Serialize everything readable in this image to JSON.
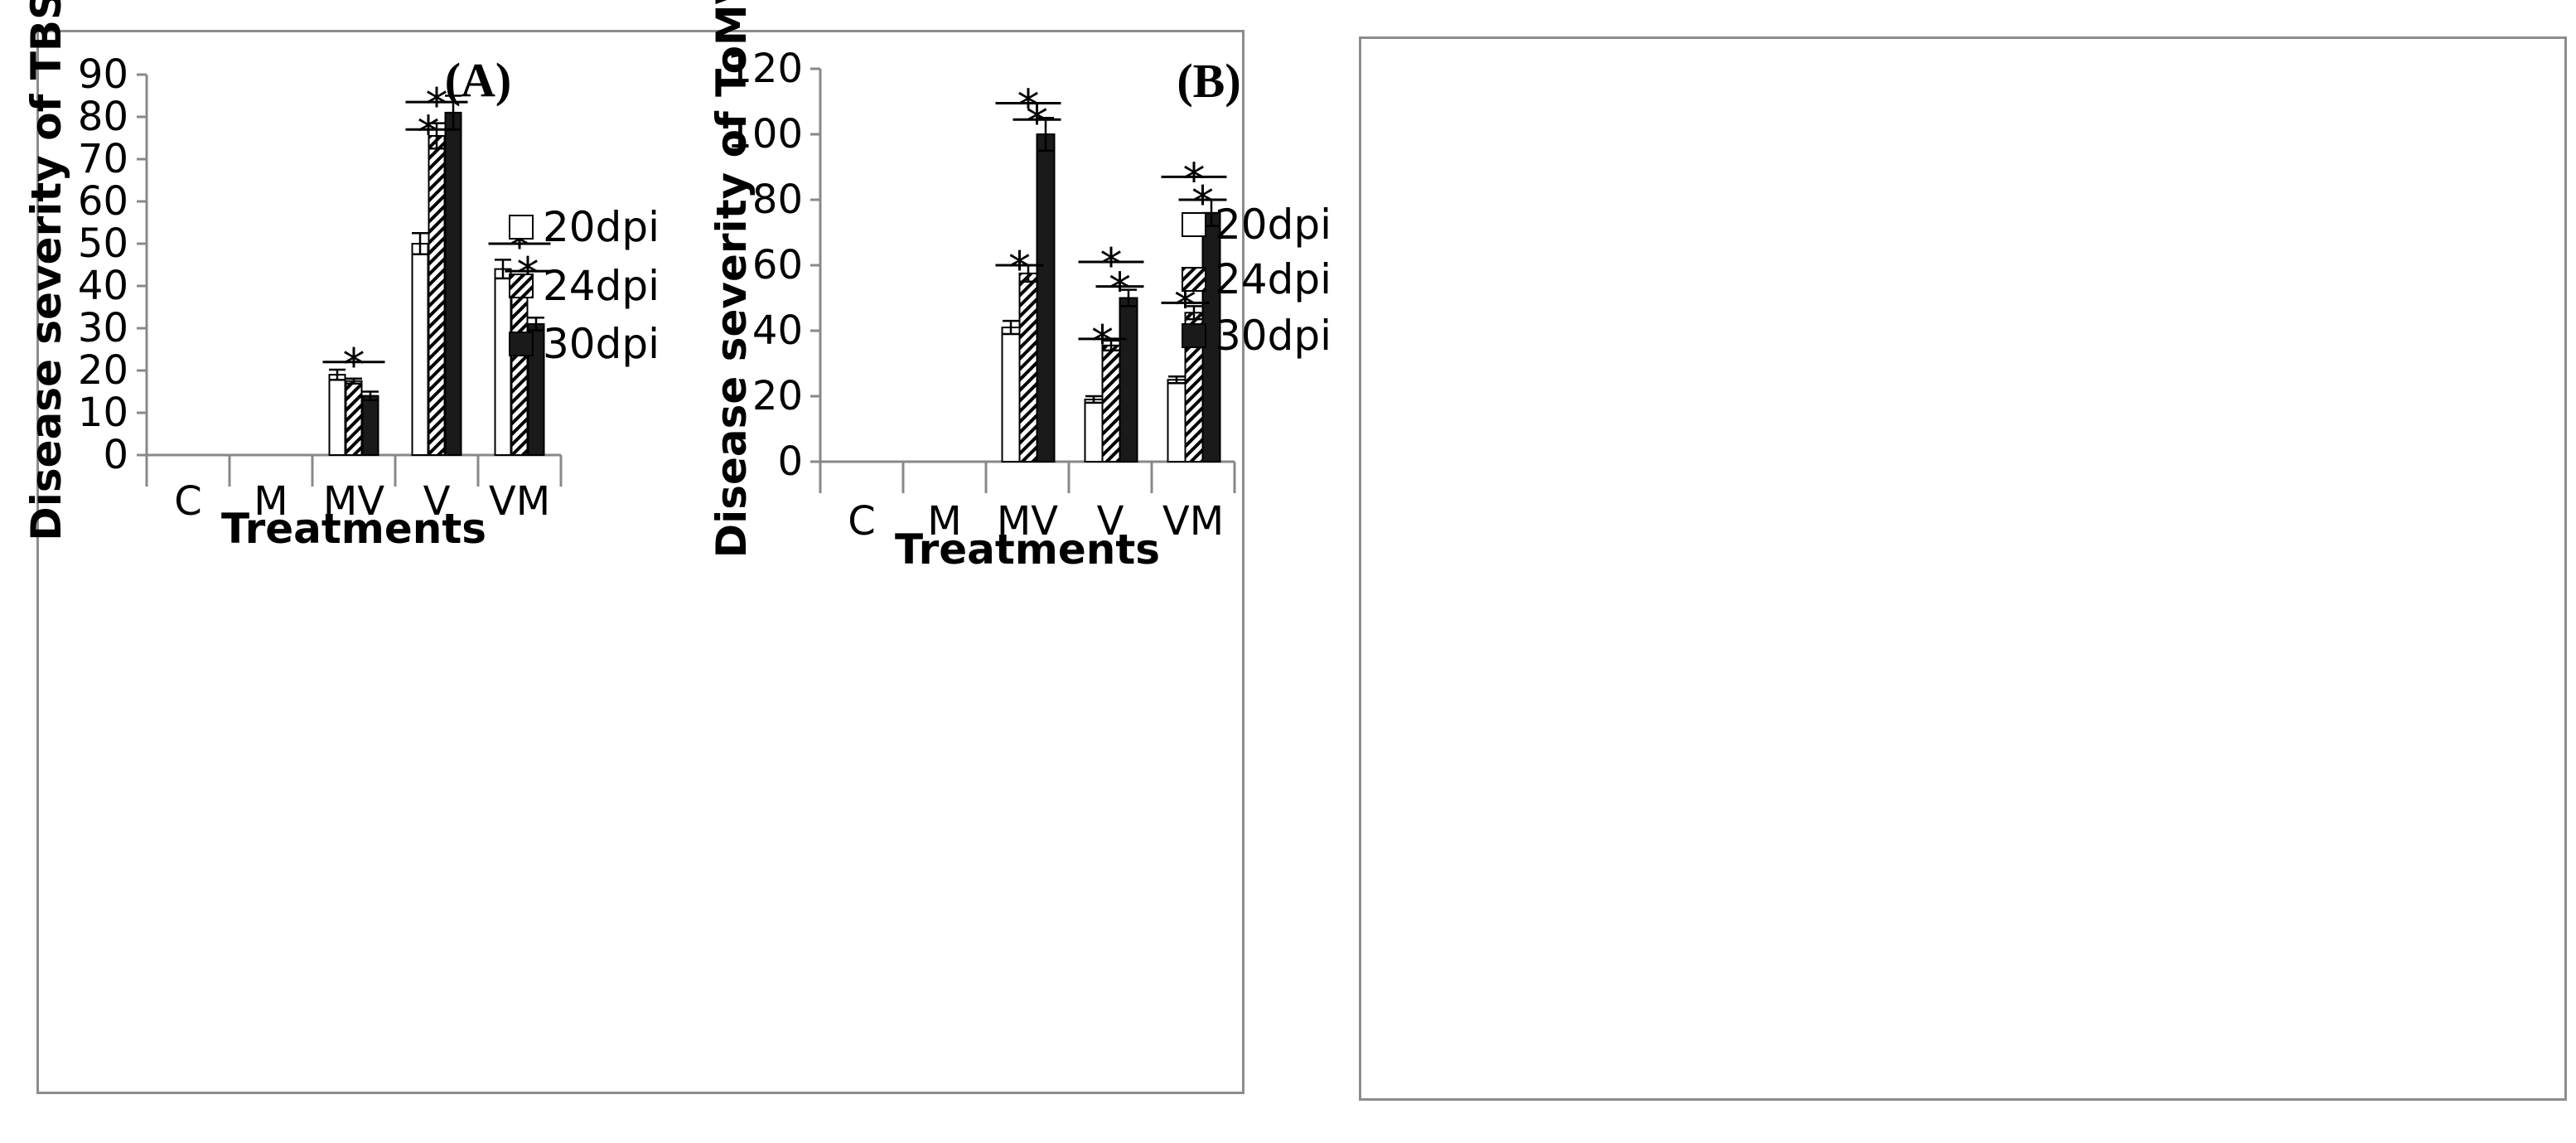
{
  "chart_data": [
    {
      "type": "bar",
      "panel_label": "(A)",
      "ylabel": "Disease severity of TBSV",
      "xlabel": "Treatments",
      "ylim": [
        0,
        90
      ],
      "yticks": [
        0,
        10,
        20,
        30,
        40,
        50,
        60,
        70,
        80,
        90
      ],
      "categories": [
        "C",
        "M",
        "MV",
        "V",
        "VM"
      ],
      "series": [
        {
          "name": "20dpi",
          "values": [
            0,
            0,
            19,
            50,
            44
          ],
          "errors": [
            0,
            0,
            1.2,
            2.5,
            2.2
          ],
          "pattern": "white"
        },
        {
          "name": "24dpi",
          "values": [
            0,
            0,
            17.5,
            75.5,
            41
          ],
          "errors": [
            0,
            0,
            0.6,
            3.0,
            1.5
          ],
          "pattern": "hatch"
        },
        {
          "name": "30dpi",
          "values": [
            0,
            0,
            14,
            81,
            31
          ],
          "errors": [
            0,
            0,
            1.0,
            4.0,
            1.5
          ],
          "pattern": "black"
        }
      ],
      "significance": [
        {
          "category": "MV",
          "from": 0,
          "to": 2,
          "level": 22
        },
        {
          "category": "V",
          "from": 0,
          "to": 1,
          "level": 77
        },
        {
          "category": "V",
          "from": 0,
          "to": 2,
          "level": 83.5
        },
        {
          "category": "VM",
          "from": 0,
          "to": 2,
          "level": 50
        },
        {
          "category": "VM",
          "from": 1,
          "to": 2,
          "level": 43.5
        }
      ],
      "star": "*",
      "legend": [
        "20dpi",
        "24dpi",
        "30dpi"
      ]
    },
    {
      "type": "bar",
      "panel_label": "(B)",
      "ylabel": "Disease severity of ToMV",
      "xlabel": "Treatments",
      "ylim": [
        0,
        120
      ],
      "yticks": [
        0,
        20,
        40,
        60,
        80,
        100,
        120
      ],
      "categories": [
        "C",
        "M",
        "MV",
        "V",
        "VM"
      ],
      "series": [
        {
          "name": "20dpi",
          "values": [
            0,
            0,
            41,
            19,
            25
          ],
          "errors": [
            0,
            0,
            2.0,
            1.0,
            1.0
          ],
          "pattern": "white"
        },
        {
          "name": "24dpi",
          "values": [
            0,
            0,
            57.5,
            35.5,
            45.5
          ],
          "errors": [
            0,
            0,
            2.5,
            1.5,
            2.0
          ],
          "pattern": "hatch"
        },
        {
          "name": "30dpi",
          "values": [
            0,
            0,
            100,
            50,
            76
          ],
          "errors": [
            0,
            0,
            5.0,
            2.5,
            4.0
          ],
          "pattern": "black"
        }
      ],
      "significance": [
        {
          "category": "MV",
          "from": 0,
          "to": 1,
          "level": 60
        },
        {
          "category": "MV",
          "from": 1,
          "to": 2,
          "level": 104.5
        },
        {
          "category": "MV",
          "from": 0,
          "to": 2,
          "level": 109.5
        },
        {
          "category": "V",
          "from": 0,
          "to": 1,
          "level": 37.5
        },
        {
          "category": "V",
          "from": 1,
          "to": 2,
          "level": 53.5
        },
        {
          "category": "V",
          "from": 0,
          "to": 2,
          "level": 61
        },
        {
          "category": "VM",
          "from": 0,
          "to": 1,
          "level": 48.5
        },
        {
          "category": "VM",
          "from": 1,
          "to": 2,
          "level": 80
        },
        {
          "category": "VM",
          "from": 0,
          "to": 2,
          "level": 87
        }
      ],
      "star": "*",
      "legend": [
        "20dpi",
        "24dpi",
        "30dpi"
      ]
    }
  ]
}
